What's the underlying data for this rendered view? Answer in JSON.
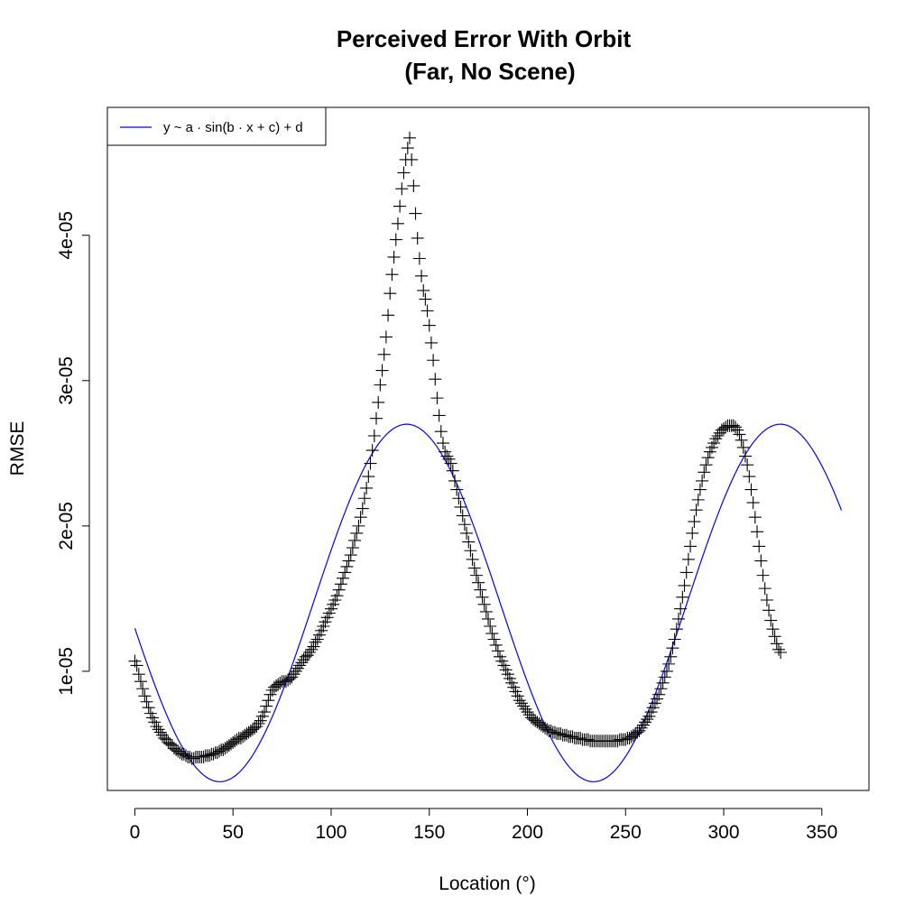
{
  "chart_data": {
    "type": "scatter",
    "title_line1": "Perceived Error With Orbit",
    "title_line2": "(Far, No Scene)",
    "xlabel": "Location (°)",
    "ylabel": "RMSE",
    "xlim": [
      -14,
      374
    ],
    "ylim": [
      1.8e-06,
      4.88e-05
    ],
    "xticks": [
      0,
      50,
      100,
      150,
      200,
      250,
      300,
      350
    ],
    "xtick_labels": [
      "0",
      "50",
      "100",
      "150",
      "200",
      "250",
      "300",
      "350"
    ],
    "yticks": [
      1e-05,
      2e-05,
      3e-05,
      4e-05
    ],
    "ytick_labels": [
      "1e-05",
      "2e-05",
      "3e-05",
      "4e-05"
    ],
    "grid": false,
    "legend": {
      "position": "top-left",
      "entries": [
        {
          "label": "y ~ a · sin(b · x + c) + d",
          "color": "#0000ff"
        }
      ]
    },
    "series": [
      {
        "kind": "scatter",
        "marker": "plus",
        "color": "#000000",
        "x_start": 0,
        "x_step": 1,
        "y": [
          1.07e-05,
          1.04e-05,
          9.8e-06,
          9.3e-06,
          8.8e-06,
          8.3e-06,
          7.9e-06,
          7.5e-06,
          7.1e-06,
          6.8e-06,
          6.5e-06,
          6.2e-06,
          6e-06,
          5.8e-06,
          5.6e-06,
          5.4e-06,
          5.3e-06,
          5.1e-06,
          5e-06,
          4.9e-06,
          4.7e-06,
          4.6e-06,
          4.5e-06,
          4.4e-06,
          4.3e-06,
          4.3e-06,
          4.2e-06,
          4.1e-06,
          4.1e-06,
          4e-06,
          4e-06,
          4.1e-06,
          4.1e-06,
          4.1e-06,
          4.1e-06,
          4.1e-06,
          4.2e-06,
          4.2e-06,
          4.2e-06,
          4.3e-06,
          4.3e-06,
          4.4e-06,
          4.4e-06,
          4.5e-06,
          4.6e-06,
          4.6e-06,
          4.7e-06,
          4.8e-06,
          4.9e-06,
          5e-06,
          5.1e-06,
          5.2e-06,
          5.3e-06,
          5.4e-06,
          5.4e-06,
          5.5e-06,
          5.6e-06,
          5.7e-06,
          5.8e-06,
          5.9e-06,
          6e-06,
          6.1e-06,
          6.2e-06,
          6.4e-06,
          6.6e-06,
          6.9e-06,
          7.2e-06,
          7.6e-06,
          8e-06,
          8.4e-06,
          8.7e-06,
          8.9e-06,
          9e-06,
          9.1e-06,
          9.2e-06,
          9.3e-06,
          9.3e-06,
          9.3e-06,
          9.4e-06,
          9.5e-06,
          9.6e-06,
          9.8e-06,
          1e-05,
          1.02e-05,
          1.04e-05,
          1.06e-05,
          1.08e-05,
          1.1e-05,
          1.11e-05,
          1.13e-05,
          1.15e-05,
          1.17e-05,
          1.2e-05,
          1.22e-05,
          1.25e-05,
          1.28e-05,
          1.31e-05,
          1.34e-05,
          1.37e-05,
          1.4e-05,
          1.43e-05,
          1.46e-05,
          1.49e-05,
          1.52e-05,
          1.56e-05,
          1.6e-05,
          1.64e-05,
          1.68e-05,
          1.72e-05,
          1.76e-05,
          1.8e-05,
          1.85e-05,
          1.9e-05,
          1.95e-05,
          2e-05,
          2.06e-05,
          2.12e-05,
          2.19e-05,
          2.26e-05,
          2.34e-05,
          2.43e-05,
          2.52e-05,
          2.62e-05,
          2.74e-05,
          2.85e-05,
          2.97e-05,
          3.07e-05,
          3.18e-05,
          3.3e-05,
          3.45e-05,
          3.6e-05,
          3.73e-05,
          3.85e-05,
          3.97e-05,
          4.08e-05,
          4.2e-05,
          4.32e-05,
          4.43e-05,
          4.52e-05,
          4.6e-05,
          4.67e-05,
          4.52e-05,
          4.34e-05,
          4.15e-05,
          3.98e-05,
          3.84e-05,
          3.72e-05,
          3.62e-05,
          3.56e-05,
          3.48e-05,
          3.38e-05,
          3.26e-05,
          3.14e-05,
          3.01e-05,
          2.88e-05,
          2.76e-05,
          2.65e-05,
          2.57e-05,
          2.51e-05,
          2.48e-05,
          2.46e-05,
          2.43e-05,
          2.38e-05,
          2.31e-05,
          2.25e-05,
          2.19e-05,
          2.13e-05,
          2.07e-05,
          2.01e-05,
          1.95e-05,
          1.89e-05,
          1.83e-05,
          1.77e-05,
          1.71e-05,
          1.66e-05,
          1.61e-05,
          1.56e-05,
          1.51e-05,
          1.46e-05,
          1.41e-05,
          1.36e-05,
          1.31e-05,
          1.26e-05,
          1.22e-05,
          1.18e-05,
          1.14e-05,
          1.1e-05,
          1.07e-05,
          1.04e-05,
          1.01e-05,
          9.8e-06,
          9.5e-06,
          9.2e-06,
          8.9e-06,
          8.6e-06,
          8.3e-06,
          8e-06,
          7.8e-06,
          7.6e-06,
          7.4e-06,
          7.2e-06,
          7e-06,
          6.8e-06,
          6.7e-06,
          6.6e-06,
          6.5e-06,
          6.4e-06,
          6.3e-06,
          6.2e-06,
          6.1e-06,
          6e-06,
          5.9e-06,
          5.9e-06,
          5.8e-06,
          5.8e-06,
          5.7e-06,
          5.7e-06,
          5.7e-06,
          5.6e-06,
          5.6e-06,
          5.6e-06,
          5.5e-06,
          5.5e-06,
          5.5e-06,
          5.4e-06,
          5.4e-06,
          5.4e-06,
          5.4e-06,
          5.3e-06,
          5.3e-06,
          5.3e-06,
          5.3e-06,
          5.2e-06,
          5.2e-06,
          5.2e-06,
          5.2e-06,
          5.2e-06,
          5.2e-06,
          5.2e-06,
          5.2e-06,
          5.2e-06,
          5.2e-06,
          5.2e-06,
          5.2e-06,
          5.2e-06,
          5.2e-06,
          5.2e-06,
          5.3e-06,
          5.3e-06,
          5.3e-06,
          5.3e-06,
          5.4e-06,
          5.4e-06,
          5.5e-06,
          5.6e-06,
          5.7e-06,
          5.8e-06,
          5.9e-06,
          6.1e-06,
          6.3e-06,
          6.5e-06,
          6.7e-06,
          6.9e-06,
          7.2e-06,
          7.5e-06,
          7.8e-06,
          8.1e-06,
          8.4e-06,
          8.8e-06,
          9.2e-06,
          9.6e-06,
          1e-05,
          1.05e-05,
          1.1e-05,
          1.16e-05,
          1.22e-05,
          1.29e-05,
          1.36e-05,
          1.43e-05,
          1.51e-05,
          1.59e-05,
          1.68e-05,
          1.77e-05,
          1.86e-05,
          1.95e-05,
          2.03e-05,
          2.11e-05,
          2.18e-05,
          2.25e-05,
          2.31e-05,
          2.37e-05,
          2.42e-05,
          2.47e-05,
          2.51e-05,
          2.54e-05,
          2.57e-05,
          2.6e-05,
          2.62e-05,
          2.64e-05,
          2.66e-05,
          2.67e-05,
          2.68e-05,
          2.69e-05,
          2.69e-05,
          2.69e-05,
          2.69e-05,
          2.68e-05,
          2.66e-05,
          2.63e-05,
          2.59e-05,
          2.54e-05,
          2.48e-05,
          2.42e-05,
          2.34e-05,
          2.25e-05,
          2.16e-05,
          2.06e-05,
          1.96e-05,
          1.86e-05,
          1.76e-05,
          1.66e-05,
          1.57e-05,
          1.49e-05,
          1.42e-05,
          1.35e-05,
          1.29e-05,
          1.24e-05,
          1.19e-05,
          1.15e-05,
          1.13e-05
        ]
      },
      {
        "kind": "line",
        "name": "y ~ a · sin(b · x + c) + d",
        "color": "#0000ff",
        "a": 1.23e-05,
        "b": 0.033,
        "c": -3.0,
        "d": 1.47e-05,
        "x_range": [
          0,
          360
        ]
      }
    ]
  }
}
